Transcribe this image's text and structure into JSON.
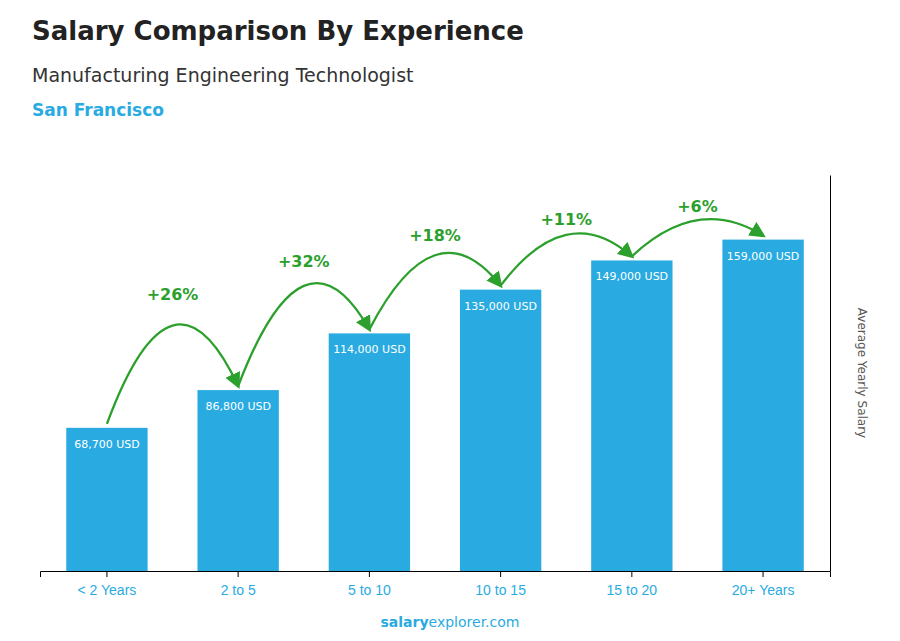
{
  "chart_data": {
    "type": "bar",
    "title": "Salary Comparison By Experience",
    "subtitle": "Manufacturing Engineering Technologist",
    "annotations": [
      "San Francisco",
      "salary",
      "explorer.com"
    ],
    "ylabel": "Average Yearly Salary",
    "categories": [
      "< 2 Years",
      "2 to 5",
      "5 to 10",
      "10 to 15",
      "15 to 20",
      "20+ Years"
    ],
    "values": [
      68700,
      86800,
      114000,
      135000,
      149000,
      159000
    ],
    "value_labels": [
      "68,700 USD",
      "86,800 USD",
      "114,000 USD",
      "135,000 USD",
      "149,000 USD",
      "159,000 USD"
    ],
    "pct_labels": [
      "+26%",
      "+32%",
      "+18%",
      "+11%",
      "+6%"
    ],
    "data_labels": true,
    "color": "#29ABE2",
    "ylim": [
      0,
      190000
    ],
    "tick_labels": "x",
    "grid": false
  }
}
